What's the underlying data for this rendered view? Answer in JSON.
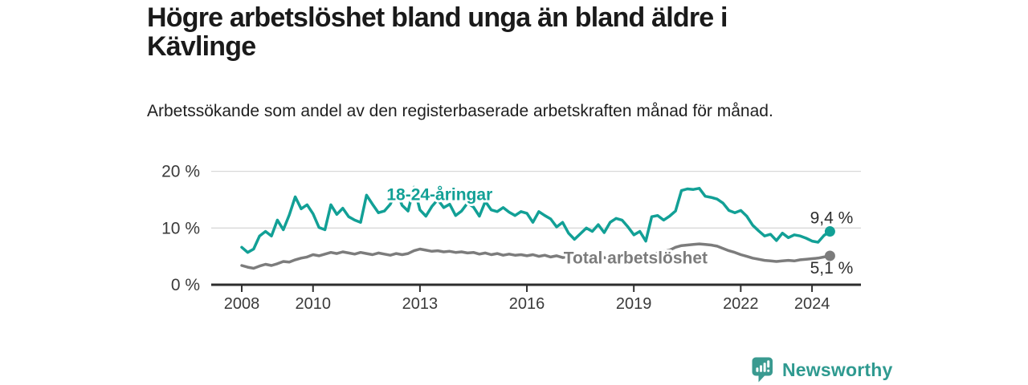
{
  "header": {
    "title": "Högre arbetslöshet bland unga än bland äldre i Kävlinge",
    "subtitle": "Arbetssökande som andel av den registerbaserade arbetskraften månad för månad."
  },
  "chart_data": {
    "type": "line",
    "title": "Högre arbetslöshet bland unga än bland äldre i Kävlinge",
    "subtitle": "Arbetssökande som andel av den registerbaserade arbetskraften månad för månad.",
    "unit": "%",
    "decimal_separator": ",",
    "ylim": [
      0,
      20
    ],
    "xlim": [
      2007.2,
      2025.4
    ],
    "grid": "horizontal",
    "y_ticks": [
      {
        "value": 0,
        "label": "0 %"
      },
      {
        "value": 10,
        "label": "10 %"
      },
      {
        "value": 20,
        "label": "20 %"
      }
    ],
    "x_ticks": [
      {
        "year": 2008,
        "label": "2008"
      },
      {
        "year": 2010,
        "label": "2010"
      },
      {
        "year": 2013,
        "label": "2013"
      },
      {
        "year": 2016,
        "label": "2016"
      },
      {
        "year": 2019,
        "label": "2019"
      },
      {
        "year": 2022,
        "label": "2022"
      },
      {
        "year": 2024,
        "label": "2024"
      }
    ],
    "x_start": 2008.0,
    "x_step": 0.1667,
    "series": [
      {
        "name": "18-24-åringar",
        "color": "#12a096",
        "end_label": "9,4 %",
        "end_value": 9.4,
        "inline_label": {
          "text": "18-24-åringar",
          "x": 2013.55,
          "y": 14.9
        },
        "end_label_side": "above",
        "values": [
          6.6,
          5.7,
          6.3,
          8.6,
          9.4,
          8.6,
          11.4,
          9.7,
          12.3,
          15.5,
          13.4,
          14.1,
          12.5,
          10.1,
          9.7,
          14.1,
          12.4,
          13.5,
          12.0,
          11.4,
          11.0,
          15.8,
          14.2,
          12.7,
          13.0,
          14.2,
          16.6,
          14.0,
          13.0,
          17.2,
          13.2,
          12.1,
          13.8,
          15.0,
          13.6,
          14.2,
          12.2,
          13.0,
          14.4,
          13.7,
          12.1,
          14.7,
          13.2,
          12.9,
          13.6,
          12.8,
          12.2,
          12.9,
          12.6,
          11.0,
          12.9,
          12.2,
          11.6,
          10.2,
          11.0,
          9.1,
          8.0,
          9.0,
          10.0,
          9.4,
          10.6,
          9.2,
          11.0,
          11.7,
          11.4,
          10.2,
          8.8,
          9.4,
          7.7,
          12.0,
          12.2,
          11.4,
          12.1,
          13.0,
          16.6,
          16.9,
          16.8,
          17.0,
          15.6,
          15.4,
          15.1,
          14.4,
          13.1,
          12.7,
          13.1,
          12.1,
          10.5,
          9.5,
          8.6,
          8.9,
          7.8,
          9.1,
          8.3,
          8.8,
          8.6,
          8.2,
          7.7,
          7.5,
          8.7,
          9.4
        ]
      },
      {
        "name": "Total arbetslöshet",
        "color": "#7c7c7c",
        "end_label": "5,1 %",
        "end_value": 5.1,
        "inline_label": {
          "text": "Total arbetslöshet",
          "x": 2019.05,
          "y": 3.75
        },
        "end_label_side": "below",
        "values": [
          3.4,
          3.1,
          2.9,
          3.3,
          3.6,
          3.4,
          3.7,
          4.1,
          4.0,
          4.4,
          4.7,
          4.9,
          5.3,
          5.1,
          5.4,
          5.7,
          5.5,
          5.8,
          5.6,
          5.4,
          5.7,
          5.5,
          5.3,
          5.6,
          5.4,
          5.2,
          5.5,
          5.3,
          5.5,
          6.0,
          6.3,
          6.1,
          5.9,
          6.0,
          5.8,
          5.9,
          5.7,
          5.8,
          5.6,
          5.7,
          5.4,
          5.6,
          5.3,
          5.5,
          5.2,
          5.4,
          5.2,
          5.3,
          5.1,
          5.3,
          5.0,
          5.2,
          4.9,
          5.1,
          4.8,
          5.0,
          4.7,
          4.9,
          4.6,
          4.8,
          4.6,
          4.8,
          4.5,
          4.7,
          4.6,
          4.8,
          4.7,
          4.9,
          5.1,
          5.3,
          5.6,
          5.9,
          6.1,
          6.6,
          6.9,
          7.0,
          7.1,
          7.2,
          7.1,
          7.0,
          6.8,
          6.4,
          6.0,
          5.7,
          5.3,
          5.0,
          4.7,
          4.5,
          4.3,
          4.2,
          4.1,
          4.2,
          4.3,
          4.2,
          4.4,
          4.5,
          4.6,
          4.7,
          4.9,
          5.1
        ]
      }
    ],
    "colors": {
      "axis": "#333333",
      "baseline": "#2d2d2d",
      "grid": "#d9d9d9",
      "value_label": "#2e2e2e",
      "tick_label": "#3a3a3a"
    }
  },
  "footer": {
    "brand": "Newsworthy",
    "brand_color": "#2f9a90",
    "icon_color": "#3a9a90"
  }
}
